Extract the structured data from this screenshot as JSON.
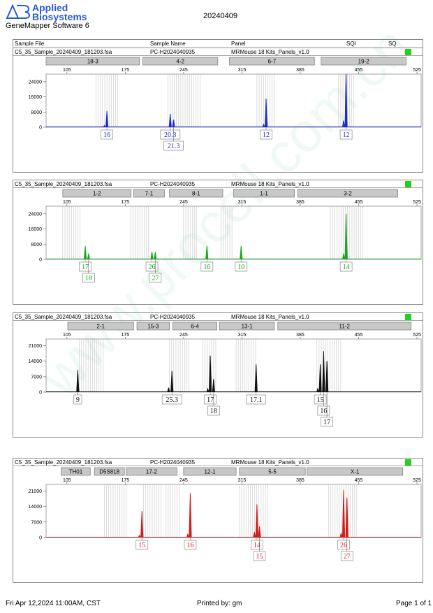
{
  "header": {
    "logo_line1": "Applied",
    "logo_line2": "Biosystems",
    "logo_mark": "AB",
    "software": "GeneMapper Software 6",
    "run_date": "20240409"
  },
  "columns": {
    "sample_file": "Sample File",
    "sample_name": "Sample Name",
    "panel": "Panel",
    "sqi": "SQI",
    "sq": "SQ"
  },
  "watermark": "www.procell.com.cn",
  "footer": {
    "date": "Fri Apr 12,2024 11:00AM, CST",
    "printed_by": "Printed by: gm",
    "page": "Page 1 of 1"
  },
  "colors": {
    "blue": "#1f2bd0",
    "green": "#17a81a",
    "black": "#111111",
    "red": "#d21b1b",
    "sq_ok": "#1ed21e"
  },
  "chart_data": [
    {
      "type": "line",
      "sample_file": "C5_35_Sample_20240409_181203.fsa",
      "sample_name": "PC-H2024040935",
      "panel": "MRMouse 18 Kits_Panels_v1.0",
      "color": "#1f2bd0",
      "xticks": [
        105,
        175,
        245,
        315,
        385,
        455,
        525
      ],
      "xlim": [
        80,
        530
      ],
      "yticks": [
        0,
        8000,
        16000,
        24000
      ],
      "ylim": [
        0,
        28000
      ],
      "markers": [
        {
          "label": "18-3",
          "start": 80,
          "end": 192
        },
        {
          "label": "4-2",
          "start": 196,
          "end": 286
        },
        {
          "label": "6-7",
          "start": 300,
          "end": 402
        },
        {
          "label": "19-2",
          "start": 410,
          "end": 512
        }
      ],
      "bins": [
        [
          140,
          166
        ],
        [
          226,
          266
        ],
        [
          333,
          354
        ],
        [
          431,
          451
        ]
      ],
      "peaks": [
        {
          "x": 153,
          "y": 8500,
          "allele": "16",
          "row": 0
        },
        {
          "x": 229,
          "y": 7000,
          "allele": "20.3",
          "row": 0
        },
        {
          "x": 233,
          "y": 4000,
          "allele": "21.3",
          "row": 1
        },
        {
          "x": 344,
          "y": 15000,
          "allele": "12",
          "row": 0
        },
        {
          "x": 440,
          "y": 28000,
          "allele": "12",
          "row": 0
        }
      ],
      "minor": [
        {
          "x": 150,
          "y": 900
        },
        {
          "x": 341,
          "y": 1500
        },
        {
          "x": 437,
          "y": 3500
        }
      ]
    },
    {
      "type": "line",
      "sample_file": "C5_35_Sample_20240409_181203.fsa",
      "sample_name": "PC-H2024040935",
      "panel": "MRMouse 18 Kits_Panels_v1.0",
      "color": "#17a81a",
      "xticks": [
        105,
        175,
        245,
        315,
        385,
        455,
        525
      ],
      "xlim": [
        80,
        530
      ],
      "yticks": [
        0,
        8000,
        16000,
        24000
      ],
      "ylim": [
        0,
        28000
      ],
      "markers": [
        {
          "label": "1-2",
          "start": 100,
          "end": 182
        },
        {
          "label": "7-1",
          "start": 185,
          "end": 222
        },
        {
          "label": "8-1",
          "start": 228,
          "end": 292
        },
        {
          "label": "1-1",
          "start": 305,
          "end": 378
        },
        {
          "label": "3-2",
          "start": 382,
          "end": 502
        }
      ],
      "bins": [
        [
          100,
          123
        ],
        [
          182,
          204
        ],
        [
          245,
          262
        ],
        [
          290,
          305
        ],
        [
          421,
          462
        ]
      ],
      "peaks": [
        {
          "x": 127,
          "y": 7000,
          "allele": "17",
          "row": 0
        },
        {
          "x": 131,
          "y": 3000,
          "allele": "18",
          "row": 1
        },
        {
          "x": 207,
          "y": 4000,
          "allele": "26",
          "row": 0
        },
        {
          "x": 211,
          "y": 3800,
          "allele": "27",
          "row": 1
        },
        {
          "x": 273,
          "y": 7000,
          "allele": "16",
          "row": 0
        },
        {
          "x": 314,
          "y": 7000,
          "allele": "10",
          "row": 0
        },
        {
          "x": 440,
          "y": 24000,
          "allele": "14",
          "row": 0
        }
      ],
      "minor": [
        {
          "x": 437,
          "y": 3000
        }
      ]
    },
    {
      "type": "line",
      "sample_file": "C5_35_Sample_20240409_181203.fsa",
      "sample_name": "PC-H2024040935",
      "panel": "MRMouse 18 Kits_Panels_v1.0",
      "color": "#111111",
      "xticks": [
        105,
        175,
        245,
        315,
        385,
        455,
        525
      ],
      "xlim": [
        80,
        530
      ],
      "yticks": [
        0,
        7000,
        14000,
        21000
      ],
      "ylim": [
        0,
        24000
      ],
      "markers": [
        {
          "label": "2-1",
          "start": 106,
          "end": 185
        },
        {
          "label": "15-3",
          "start": 189,
          "end": 228
        },
        {
          "label": "6-4",
          "start": 232,
          "end": 285
        },
        {
          "label": "13-1",
          "start": 288,
          "end": 354
        },
        {
          "label": "11-2",
          "start": 358,
          "end": 518
        }
      ],
      "bins": [
        [
          120,
          150
        ],
        [
          228,
          252
        ],
        [
          268,
          284
        ],
        [
          308,
          334
        ],
        [
          405,
          435
        ]
      ],
      "peaks": [
        {
          "x": 118,
          "y": 10000,
          "allele": "9",
          "row": 0
        },
        {
          "x": 231,
          "y": 9500,
          "allele": "25.3",
          "row": 0
        },
        {
          "x": 277,
          "y": 16500,
          "allele": "17",
          "row": 0
        },
        {
          "x": 281,
          "y": 6000,
          "allele": "18",
          "row": 1
        },
        {
          "x": 332,
          "y": 12500,
          "allele": "17.1",
          "row": 0
        },
        {
          "x": 409,
          "y": 12500,
          "allele": "15",
          "row": 0
        },
        {
          "x": 413,
          "y": 18500,
          "allele": "16",
          "row": 1
        },
        {
          "x": 417,
          "y": 14000,
          "allele": "17",
          "row": 2
        }
      ],
      "minor": [
        {
          "x": 227,
          "y": 2000
        },
        {
          "x": 274,
          "y": 1500
        },
        {
          "x": 406,
          "y": 1500
        }
      ]
    },
    {
      "type": "line",
      "sample_file": "C5_35_Sample_20240409_181203.fsa",
      "sample_name": "PC-H2024040935",
      "panel": "MRMouse 18 Kits_Panels_v1.0",
      "color": "#d21b1b",
      "xticks": [
        105,
        175,
        245,
        315,
        385,
        455,
        525
      ],
      "xlim": [
        80,
        530
      ],
      "yticks": [
        0,
        7000,
        14000,
        21000
      ],
      "ylim": [
        0,
        24000
      ],
      "markers": [
        {
          "label": "TH01",
          "start": 98,
          "end": 133
        },
        {
          "label": "D5S818",
          "start": 138,
          "end": 174
        },
        {
          "label": "17-2",
          "start": 176,
          "end": 237
        },
        {
          "label": "12-1",
          "start": 245,
          "end": 308
        },
        {
          "label": "5-5",
          "start": 312,
          "end": 391
        },
        {
          "label": "X-1",
          "start": 393,
          "end": 508
        }
      ],
      "bins": [
        [
          150,
          176
        ],
        [
          197,
          220
        ],
        [
          224,
          242
        ],
        [
          312,
          348
        ],
        [
          419,
          453
        ]
      ],
      "peaks": [
        {
          "x": 195,
          "y": 12000,
          "allele": "15",
          "row": 0
        },
        {
          "x": 253,
          "y": 20000,
          "allele": "16",
          "row": 0
        },
        {
          "x": 333,
          "y": 15000,
          "allele": "14",
          "row": 0
        },
        {
          "x": 336,
          "y": 5000,
          "allele": "15",
          "row": 1
        },
        {
          "x": 437,
          "y": 21500,
          "allele": "26",
          "row": 0
        },
        {
          "x": 441,
          "y": 18000,
          "allele": "27",
          "row": 1
        }
      ],
      "minor": [
        {
          "x": 192,
          "y": 1000
        },
        {
          "x": 250,
          "y": 1500
        },
        {
          "x": 330,
          "y": 2500
        },
        {
          "x": 434,
          "y": 2000
        }
      ]
    }
  ]
}
